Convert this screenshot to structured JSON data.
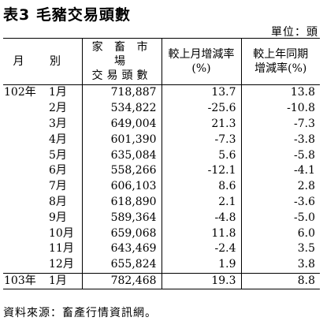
{
  "title": "表3 毛豬交易頭數",
  "unit": "單位：頭",
  "headers": {
    "month": "月 別",
    "market_line1": "家 畜 市 場",
    "market_line2": "交易頭數",
    "mom_line1": "較上月增減率",
    "mom_line2": "(%)",
    "yoy_line1": "較上年同期",
    "yoy_line2": "增減率(%)"
  },
  "rows": [
    {
      "year": "102年",
      "month": "1月",
      "heads": "718,887",
      "mom": "13.7",
      "yoy": "13.8"
    },
    {
      "year": "",
      "month": "2月",
      "heads": "534,822",
      "mom": "-25.6",
      "yoy": "-10.8"
    },
    {
      "year": "",
      "month": "3月",
      "heads": "649,004",
      "mom": "21.3",
      "yoy": "-7.3"
    },
    {
      "year": "",
      "month": "4月",
      "heads": "601,390",
      "mom": "-7.3",
      "yoy": "-3.8"
    },
    {
      "year": "",
      "month": "5月",
      "heads": "635,084",
      "mom": "5.6",
      "yoy": "-5.8"
    },
    {
      "year": "",
      "month": "6月",
      "heads": "558,266",
      "mom": "-12.1",
      "yoy": "-4.1"
    },
    {
      "year": "",
      "month": "7月",
      "heads": "606,103",
      "mom": "8.6",
      "yoy": "2.8"
    },
    {
      "year": "",
      "month": "8月",
      "heads": "618,890",
      "mom": "2.1",
      "yoy": "-3.6"
    },
    {
      "year": "",
      "month": "9月",
      "heads": "589,364",
      "mom": "-4.8",
      "yoy": "-5.0"
    },
    {
      "year": "",
      "month": "10月",
      "heads": "659,068",
      "mom": "11.8",
      "yoy": "6.0"
    },
    {
      "year": "",
      "month": "11月",
      "heads": "643,469",
      "mom": "-2.4",
      "yoy": "3.5"
    },
    {
      "year": "",
      "month": "12月",
      "heads": "655,824",
      "mom": "1.9",
      "yoy": "3.8"
    },
    {
      "year": "103年",
      "month": "1月",
      "heads": "782,468",
      "mom": "19.3",
      "yoy": "8.8"
    }
  ],
  "source": "資料來源：畜產行情資訊網。"
}
